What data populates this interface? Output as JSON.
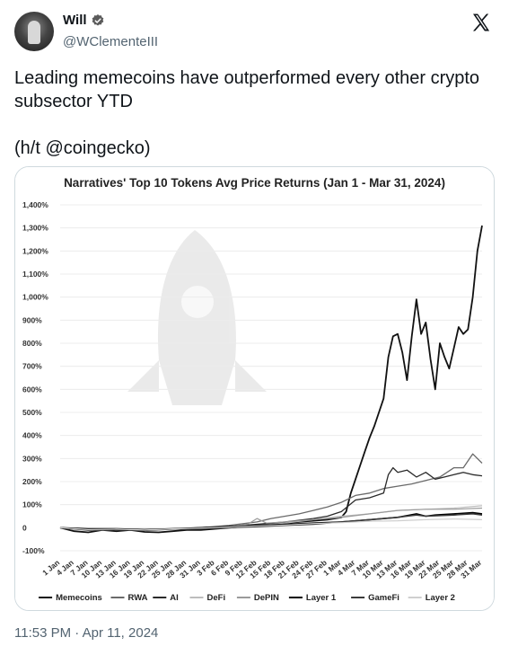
{
  "author": {
    "name": "Will",
    "handle": "@WClementeIII"
  },
  "tweet": {
    "text_line1": "Leading memecoins have outperformed every other crypto subsector YTD",
    "text_line2": "(h/t @coingecko)"
  },
  "timestamp": "11:53 PM · Apr 11, 2024",
  "icons": {
    "verified": "verified-badge-icon",
    "platform": "x-logo-icon"
  },
  "chart_data": {
    "type": "line",
    "title": "Narratives' Top 10 Tokens Avg Price Returns (Jan 1 - Mar 31, 2024)",
    "xlabel": "",
    "ylabel": "",
    "ylim": [
      -100,
      1400
    ],
    "y_ticks": [
      "-100%",
      "0",
      "100%",
      "200%",
      "300%",
      "400%",
      "500%",
      "600%",
      "700%",
      "800%",
      "900%",
      "1,000%",
      "1,100%",
      "1,200%",
      "1,300%",
      "1,400%"
    ],
    "x_ticks": [
      "1 Jan",
      "4 Jan",
      "7 Jan",
      "10 Jan",
      "13 Jan",
      "16 Jan",
      "19 Jan",
      "22 Jan",
      "25 Jan",
      "28 Jan",
      "31 Jan",
      "3 Feb",
      "6 Feb",
      "9 Feb",
      "12 Feb",
      "15 Feb",
      "18 Feb",
      "21 Feb",
      "24 Feb",
      "27 Feb",
      "1 Mar",
      "4 Mar",
      "7 Mar",
      "10 Mar",
      "13 Mar",
      "16 Mar",
      "19 Mar",
      "22 Mar",
      "25 Mar",
      "28 Mar",
      "31 Mar"
    ],
    "x_days": [
      0,
      3,
      6,
      9,
      12,
      15,
      18,
      21,
      24,
      27,
      30,
      33,
      36,
      39,
      42,
      45,
      48,
      51,
      54,
      57,
      60,
      63,
      66,
      69,
      72,
      75,
      78,
      81,
      84,
      87,
      90
    ],
    "grid": true,
    "legend_position": "bottom",
    "series": [
      {
        "name": "Memecoins",
        "color": "#111111",
        "width": 1.8,
        "points": [
          [
            0,
            0
          ],
          [
            3,
            -15
          ],
          [
            6,
            -20
          ],
          [
            9,
            -10
          ],
          [
            12,
            -15
          ],
          [
            15,
            -10
          ],
          [
            18,
            -18
          ],
          [
            21,
            -20
          ],
          [
            24,
            -15
          ],
          [
            27,
            -10
          ],
          [
            30,
            -10
          ],
          [
            33,
            -5
          ],
          [
            36,
            0
          ],
          [
            39,
            5
          ],
          [
            42,
            10
          ],
          [
            45,
            15
          ],
          [
            48,
            20
          ],
          [
            51,
            25
          ],
          [
            54,
            30
          ],
          [
            57,
            35
          ],
          [
            60,
            45
          ],
          [
            61,
            70
          ],
          [
            62,
            150
          ],
          [
            63,
            210
          ],
          [
            64,
            270
          ],
          [
            65,
            330
          ],
          [
            66,
            390
          ],
          [
            67,
            440
          ],
          [
            68,
            500
          ],
          [
            69,
            560
          ],
          [
            70,
            740
          ],
          [
            71,
            830
          ],
          [
            72,
            840
          ],
          [
            73,
            760
          ],
          [
            74,
            640
          ],
          [
            75,
            830
          ],
          [
            76,
            990
          ],
          [
            77,
            840
          ],
          [
            78,
            890
          ],
          [
            79,
            730
          ],
          [
            80,
            600
          ],
          [
            81,
            800
          ],
          [
            82,
            740
          ],
          [
            83,
            690
          ],
          [
            84,
            780
          ],
          [
            85,
            870
          ],
          [
            86,
            840
          ],
          [
            87,
            860
          ],
          [
            88,
            1000
          ],
          [
            89,
            1200
          ],
          [
            90,
            1310
          ]
        ]
      },
      {
        "name": "RWA",
        "color": "#6a6a6a",
        "width": 1.3,
        "points": [
          [
            0,
            0
          ],
          [
            6,
            -10
          ],
          [
            12,
            -5
          ],
          [
            18,
            -10
          ],
          [
            24,
            -5
          ],
          [
            30,
            0
          ],
          [
            36,
            10
          ],
          [
            42,
            25
          ],
          [
            45,
            40
          ],
          [
            48,
            50
          ],
          [
            51,
            60
          ],
          [
            54,
            75
          ],
          [
            57,
            90
          ],
          [
            60,
            110
          ],
          [
            63,
            140
          ],
          [
            66,
            150
          ],
          [
            69,
            170
          ],
          [
            72,
            180
          ],
          [
            75,
            190
          ],
          [
            78,
            205
          ],
          [
            81,
            220
          ],
          [
            84,
            260
          ],
          [
            86,
            260
          ],
          [
            88,
            320
          ],
          [
            90,
            280
          ]
        ]
      },
      {
        "name": "AI",
        "color": "#2a2a2a",
        "width": 1.3,
        "points": [
          [
            0,
            0
          ],
          [
            6,
            -10
          ],
          [
            12,
            -8
          ],
          [
            18,
            -10
          ],
          [
            24,
            -5
          ],
          [
            30,
            -5
          ],
          [
            36,
            5
          ],
          [
            42,
            15
          ],
          [
            48,
            25
          ],
          [
            54,
            40
          ],
          [
            57,
            50
          ],
          [
            60,
            70
          ],
          [
            63,
            120
          ],
          [
            66,
            130
          ],
          [
            69,
            150
          ],
          [
            70,
            230
          ],
          [
            71,
            260
          ],
          [
            72,
            240
          ],
          [
            74,
            250
          ],
          [
            76,
            220
          ],
          [
            78,
            240
          ],
          [
            80,
            210
          ],
          [
            82,
            220
          ],
          [
            84,
            230
          ],
          [
            86,
            240
          ],
          [
            88,
            230
          ],
          [
            90,
            225
          ]
        ]
      },
      {
        "name": "DeFi",
        "color": "#bdbdbd",
        "width": 1.2,
        "points": [
          [
            0,
            0
          ],
          [
            6,
            -8
          ],
          [
            12,
            -6
          ],
          [
            18,
            -8
          ],
          [
            24,
            -4
          ],
          [
            30,
            0
          ],
          [
            36,
            5
          ],
          [
            42,
            10
          ],
          [
            48,
            20
          ],
          [
            54,
            35
          ],
          [
            60,
            50
          ],
          [
            66,
            60
          ],
          [
            72,
            75
          ],
          [
            78,
            80
          ],
          [
            84,
            85
          ],
          [
            90,
            95
          ]
        ]
      },
      {
        "name": "DePIN",
        "color": "#9a9a9a",
        "width": 1.2,
        "points": [
          [
            0,
            0
          ],
          [
            6,
            -12
          ],
          [
            12,
            -8
          ],
          [
            18,
            -10
          ],
          [
            24,
            -6
          ],
          [
            30,
            -3
          ],
          [
            36,
            5
          ],
          [
            40,
            15
          ],
          [
            42,
            40
          ],
          [
            44,
            20
          ],
          [
            48,
            25
          ],
          [
            54,
            35
          ],
          [
            60,
            45
          ],
          [
            66,
            60
          ],
          [
            72,
            75
          ],
          [
            78,
            80
          ],
          [
            84,
            80
          ],
          [
            90,
            85
          ]
        ]
      },
      {
        "name": "Layer 1",
        "color": "#000000",
        "width": 1.6,
        "points": [
          [
            0,
            0
          ],
          [
            6,
            -5
          ],
          [
            12,
            -5
          ],
          [
            18,
            -8
          ],
          [
            24,
            -5
          ],
          [
            30,
            0
          ],
          [
            36,
            5
          ],
          [
            42,
            10
          ],
          [
            48,
            15
          ],
          [
            54,
            20
          ],
          [
            60,
            25
          ],
          [
            66,
            35
          ],
          [
            72,
            45
          ],
          [
            76,
            60
          ],
          [
            78,
            50
          ],
          [
            80,
            55
          ],
          [
            84,
            60
          ],
          [
            88,
            65
          ],
          [
            90,
            60
          ]
        ]
      },
      {
        "name": "GameFi",
        "color": "#3b3b3b",
        "width": 1.5,
        "points": [
          [
            0,
            0
          ],
          [
            6,
            -10
          ],
          [
            12,
            -8
          ],
          [
            18,
            -12
          ],
          [
            24,
            -6
          ],
          [
            30,
            -3
          ],
          [
            36,
            0
          ],
          [
            42,
            5
          ],
          [
            48,
            10
          ],
          [
            54,
            15
          ],
          [
            60,
            25
          ],
          [
            66,
            35
          ],
          [
            72,
            45
          ],
          [
            76,
            55
          ],
          [
            78,
            50
          ],
          [
            84,
            55
          ],
          [
            88,
            60
          ],
          [
            90,
            55
          ]
        ]
      },
      {
        "name": "Layer 2",
        "color": "#cfcfcf",
        "width": 1.2,
        "points": [
          [
            0,
            0
          ],
          [
            6,
            -8
          ],
          [
            12,
            -6
          ],
          [
            18,
            -10
          ],
          [
            24,
            -5
          ],
          [
            30,
            -2
          ],
          [
            36,
            3
          ],
          [
            42,
            8
          ],
          [
            48,
            12
          ],
          [
            54,
            18
          ],
          [
            60,
            22
          ],
          [
            66,
            28
          ],
          [
            72,
            30
          ],
          [
            78,
            35
          ],
          [
            84,
            38
          ],
          [
            90,
            35
          ]
        ]
      }
    ]
  }
}
